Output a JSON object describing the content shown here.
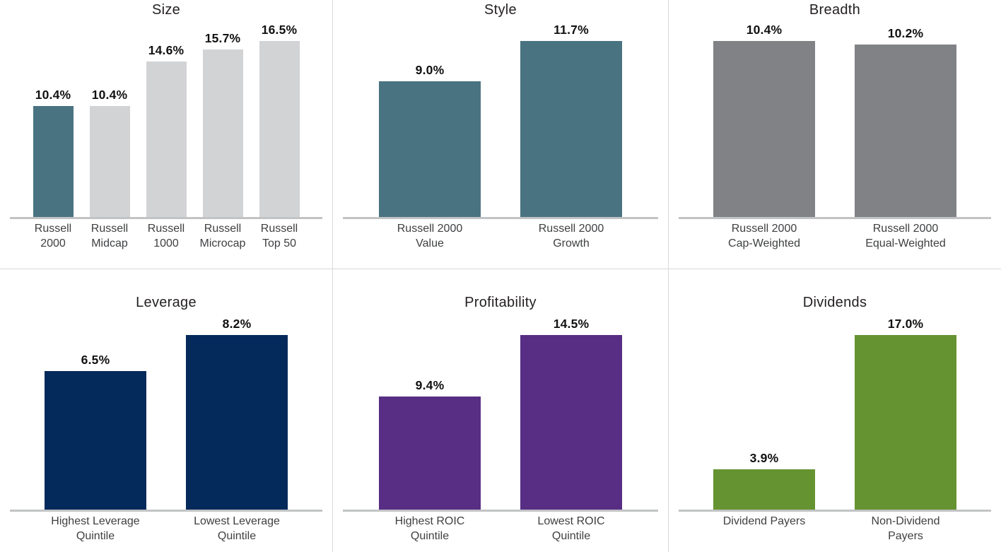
{
  "chart_data": [
    {
      "type": "bar",
      "title": "Size",
      "categories": [
        "Russell\n2000",
        "Russell\nMidcap",
        "Russell\n1000",
        "Russell\nMicrocap",
        "Russell\nTop 50"
      ],
      "values": [
        10.4,
        10.4,
        14.6,
        15.7,
        16.5
      ],
      "value_labels": [
        "10.4%",
        "10.4%",
        "14.6%",
        "15.7%",
        "16.5%"
      ],
      "bar_colors": [
        "#4A7381",
        "#D2D3D5",
        "#D2D3D5",
        "#D2D3D5",
        "#D2D3D5"
      ],
      "unit": "%",
      "ylim": [
        0,
        16.5
      ],
      "grid": false,
      "legend": false
    },
    {
      "type": "bar",
      "title": "Style",
      "categories": [
        "Russell 2000\nValue",
        "Russell 2000\nGrowth"
      ],
      "values": [
        9.0,
        11.7
      ],
      "value_labels": [
        "9.0%",
        "11.7%"
      ],
      "bar_colors": [
        "#4A7381",
        "#4A7381"
      ],
      "unit": "%",
      "ylim": [
        0,
        11.7
      ],
      "grid": false,
      "legend": false
    },
    {
      "type": "bar",
      "title": "Breadth",
      "categories": [
        "Russell 2000\nCap-Weighted",
        "Russell 2000\nEqual-Weighted"
      ],
      "values": [
        10.4,
        10.2
      ],
      "value_labels": [
        "10.4%",
        "10.2%"
      ],
      "bar_colors": [
        "#808285",
        "#808285"
      ],
      "unit": "%",
      "ylim": [
        0,
        10.4
      ],
      "grid": false,
      "legend": false
    },
    {
      "type": "bar",
      "title": "Leverage",
      "categories": [
        "Highest Leverage\nQuintile",
        "Lowest Leverage\nQuintile"
      ],
      "values": [
        6.5,
        8.2
      ],
      "value_labels": [
        "6.5%",
        "8.2%"
      ],
      "bar_colors": [
        "#04295B",
        "#04295B"
      ],
      "unit": "%",
      "ylim": [
        0,
        8.2
      ],
      "grid": false,
      "legend": false
    },
    {
      "type": "bar",
      "title": "Profitability",
      "categories": [
        "Highest ROIC\nQuintile",
        "Lowest ROIC\nQuintile"
      ],
      "values": [
        9.4,
        14.5
      ],
      "value_labels": [
        "9.4%",
        "14.5%"
      ],
      "bar_colors": [
        "#572E83",
        "#572E83"
      ],
      "unit": "%",
      "ylim": [
        0,
        14.5
      ],
      "grid": false,
      "legend": false
    },
    {
      "type": "bar",
      "title": "Dividends",
      "categories": [
        "Dividend Payers",
        "Non-Dividend\nPayers"
      ],
      "values": [
        3.9,
        17.0
      ],
      "value_labels": [
        "3.9%",
        "17.0%"
      ],
      "bar_colors": [
        "#669331",
        "#669331"
      ],
      "unit": "%",
      "ylim": [
        0,
        17.0
      ],
      "grid": false,
      "legend": false
    }
  ],
  "theme": {
    "background": "#FFFFFF",
    "divider_color": "#D9D9DB",
    "axis_color": "#C2C3C5",
    "title_color": "#231F20",
    "value_color": "#111111",
    "label_color": "#3F4042"
  }
}
